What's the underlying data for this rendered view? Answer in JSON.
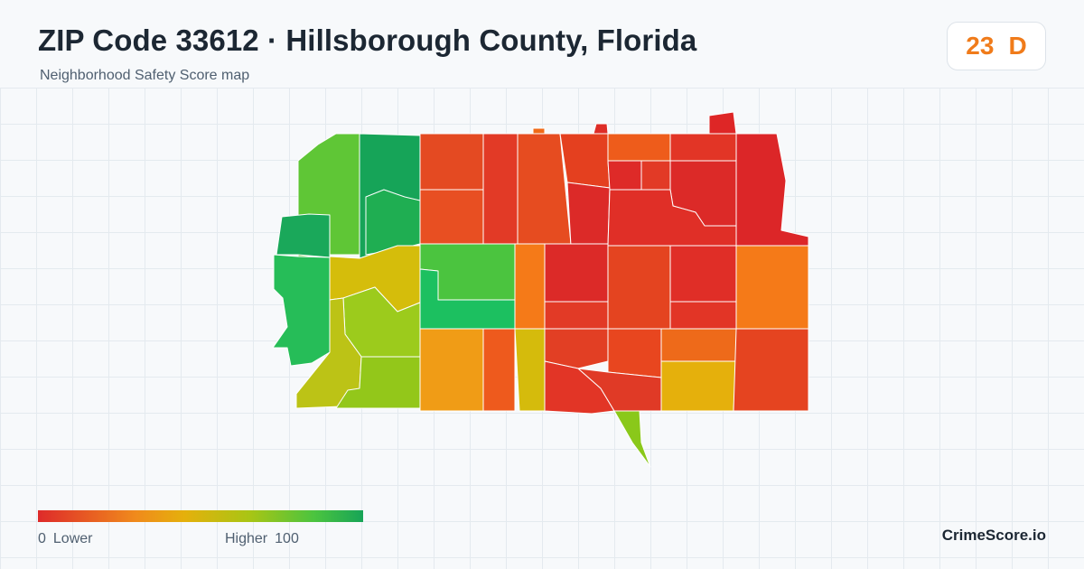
{
  "header": {
    "title": "ZIP Code 33612 · Hillsborough County, Florida",
    "subtitle": "Neighborhood Safety Score map"
  },
  "score": {
    "value": "23",
    "grade": "D",
    "color": "#f07b1a"
  },
  "legend": {
    "min": "0",
    "min_label": "Lower",
    "max_label": "Higher",
    "max": "100",
    "colors": [
      "#de2a2a",
      "#f08a1c",
      "#e5b00c",
      "#a9c514",
      "#4bc43f",
      "#17a457"
    ]
  },
  "brand": "CrimeScore.io"
}
